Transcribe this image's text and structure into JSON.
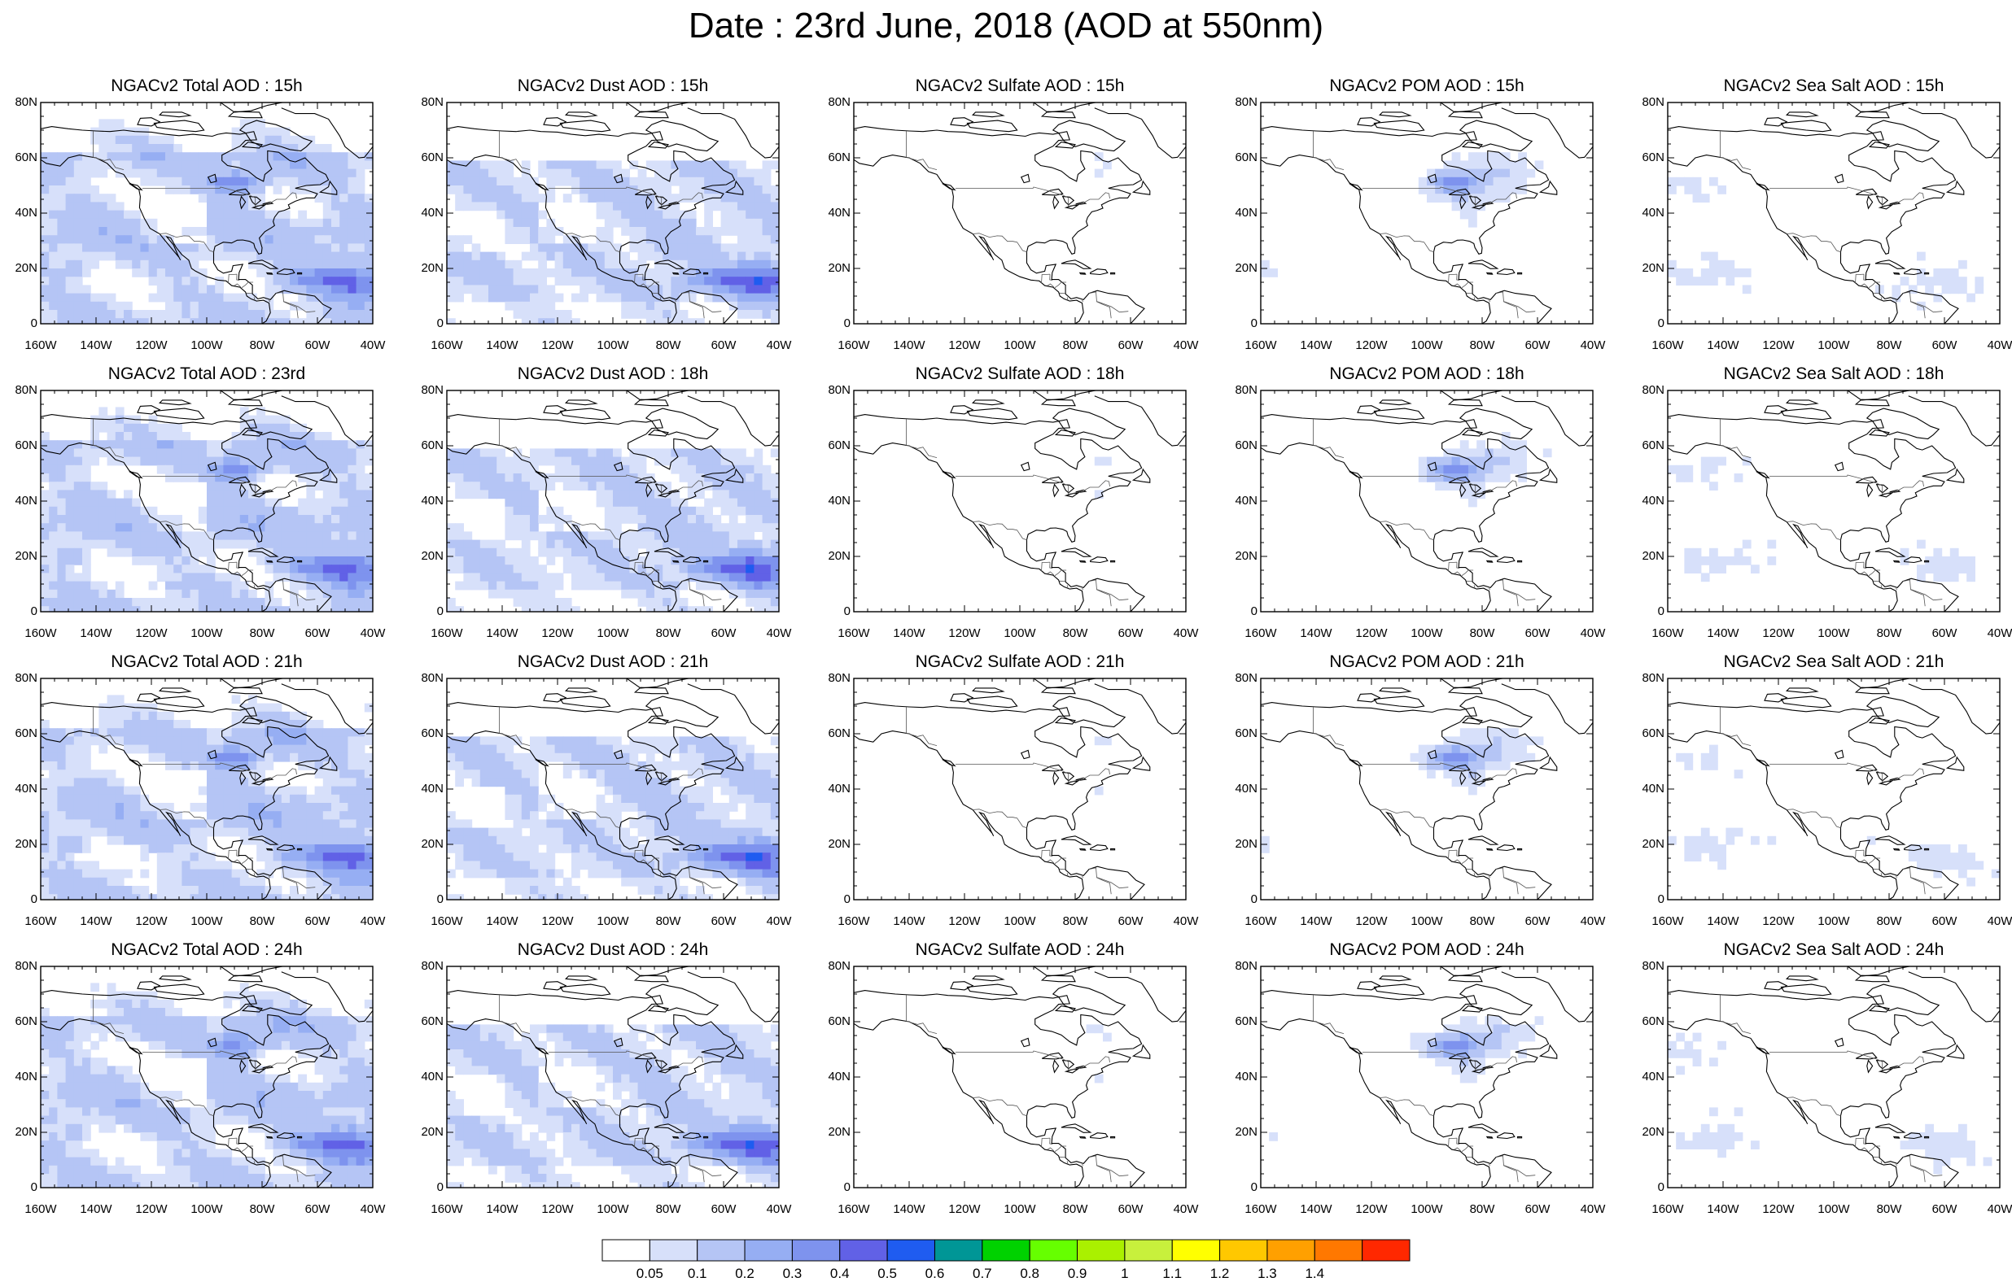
{
  "figure": {
    "title": "Date : 23rd June, 2018 (AOD at 550nm)"
  },
  "panel_titles": [
    [
      "NGACv2 Total AOD : 15h",
      "NGACv2 Dust AOD : 15h",
      "NGACv2 Sulfate AOD : 15h",
      "NGACv2 POM AOD : 15h",
      "NGACv2 Sea Salt AOD : 15h"
    ],
    [
      "NGACv2 Total AOD : 23rd",
      "NGACv2 Dust AOD : 18h",
      "NGACv2 Sulfate AOD : 18h",
      "NGACv2 POM AOD : 18h",
      "NGACv2 Sea Salt AOD : 18h"
    ],
    [
      "NGACv2 Total AOD : 21h",
      "NGACv2 Dust AOD : 21h",
      "NGACv2 Sulfate AOD : 21h",
      "NGACv2 POM AOD : 21h",
      "NGACv2 Sea Salt AOD : 21h"
    ],
    [
      "NGACv2 Total AOD : 24h",
      "NGACv2 Dust AOD : 24h",
      "NGACv2 Sulfate AOD : 24h",
      "NGACv2 POM AOD : 24h",
      "NGACv2 Sea Salt  AOD : 24h"
    ]
  ],
  "map": {
    "lon_range": [
      -160,
      -40
    ],
    "lat_range": [
      0,
      80
    ],
    "x_ticks": [
      "160W",
      "140W",
      "120W",
      "100W",
      "80W",
      "60W",
      "40W"
    ],
    "y_ticks": [
      "0",
      "20N",
      "40N",
      "60N",
      "80N"
    ],
    "field_types": [
      "total",
      "dust",
      "sulfate",
      "pom",
      "seasalt"
    ],
    "coastline_color": "#000000",
    "border_color": "#555555"
  },
  "colorbar": {
    "labels": [
      "0.05",
      "0.1",
      "0.2",
      "0.3",
      "0.4",
      "0.5",
      "0.6",
      "0.7",
      "0.8",
      "0.9",
      "1",
      "1.1",
      "1.2",
      "1.3",
      "1.4"
    ],
    "colors": [
      "#ffffff",
      "#d7e0fa",
      "#b5c5f5",
      "#96aef3",
      "#7e93ee",
      "#6161e6",
      "#1f5cf0",
      "#009696",
      "#00d200",
      "#66ff00",
      "#aaf000",
      "#c8f03c",
      "#ffff00",
      "#ffc800",
      "#ffa000",
      "#ff7800",
      "#ff2800"
    ],
    "colors_note": ""
  }
}
